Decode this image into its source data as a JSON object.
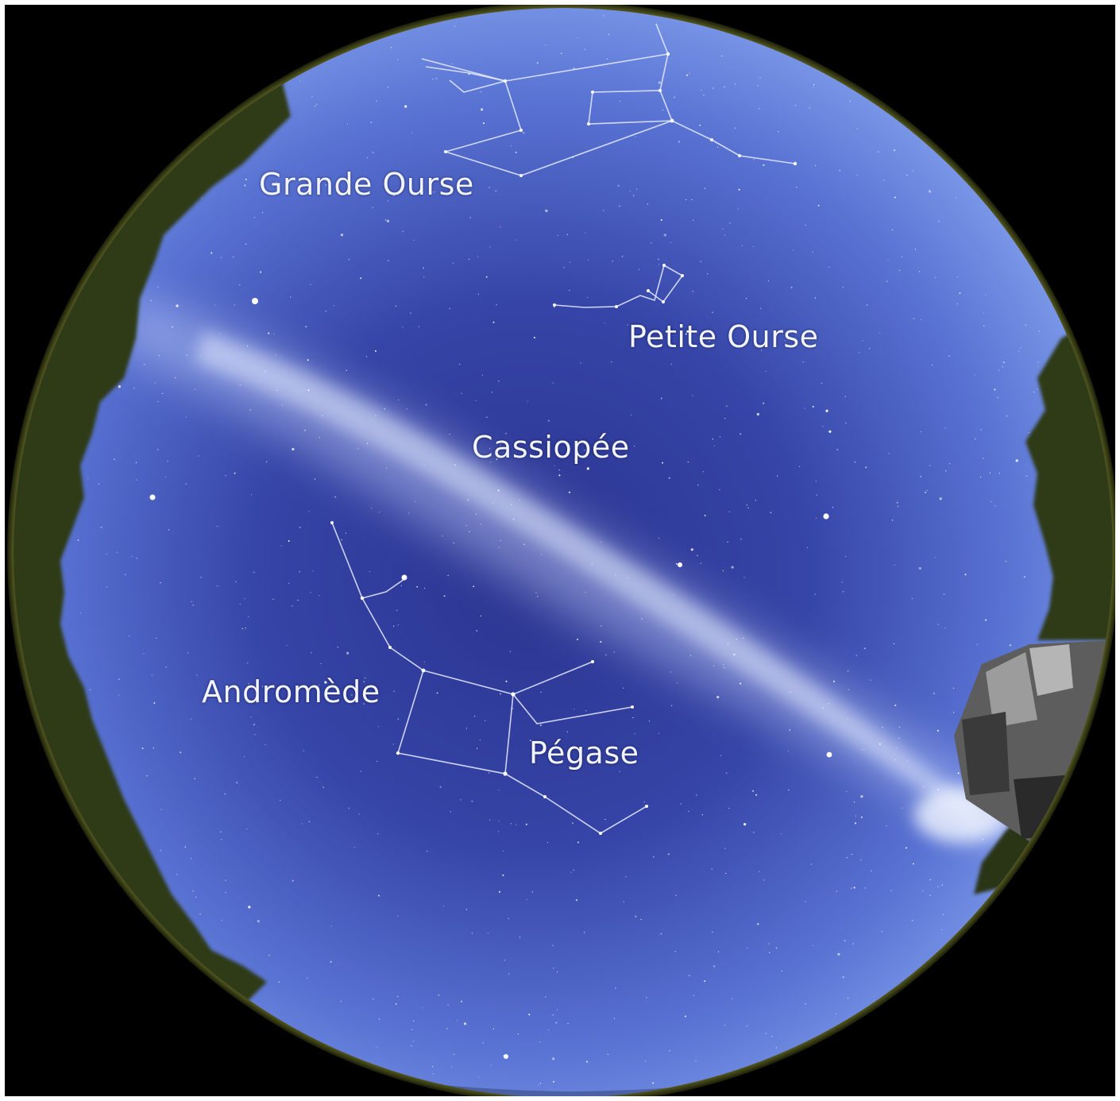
{
  "constellations": {
    "grande_ourse": "Grande Ourse",
    "petite_ourse": "Petite Ourse",
    "cassiopee": "Cassiopée",
    "andromede": "Andromède",
    "pegase": "Pégase"
  },
  "colors": {
    "sky_center": "#2f3a9a",
    "sky_edge": "#6f8ee6",
    "milky_way": "#e4ecff",
    "trees": "#2d3a18",
    "horizon_rim": "#6b6f2a",
    "background": "#000000",
    "lines": "#e8ecff"
  },
  "icons": {
    "observatory_dome": "observatory-dome-icon"
  }
}
